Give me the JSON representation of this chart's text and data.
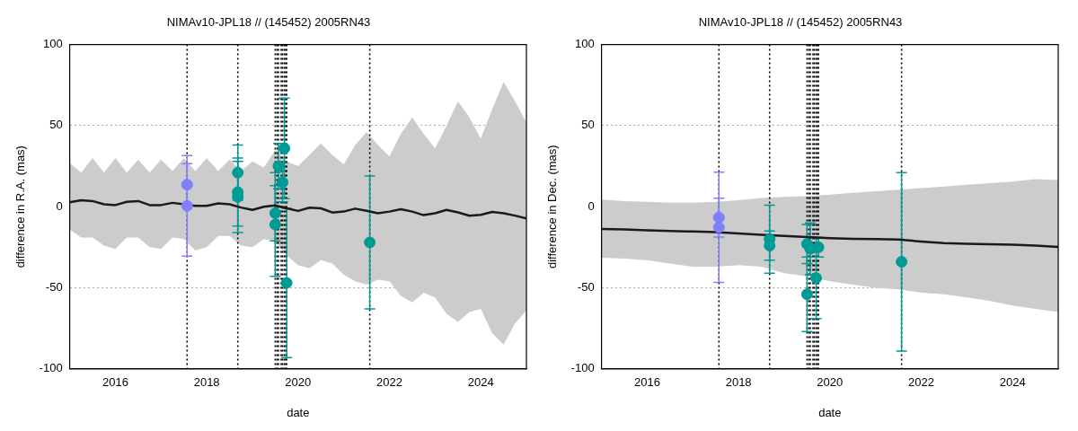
{
  "chart_data": [
    {
      "type": "scatter",
      "title": "NIMAv10-JPL18 // (145452) 2005RN43",
      "xlabel": "date",
      "ylabel": "difference in R.A. (mas)",
      "xlim": [
        2015,
        2025
      ],
      "xticks": [
        2016,
        2018,
        2020,
        2022,
        2024
      ],
      "ylim": [
        -100,
        100
      ],
      "yticks": [
        -100,
        -50,
        0,
        50,
        100
      ],
      "grid": "y",
      "legend": false,
      "marker": "circle",
      "ref_lines": [
        {
          "axis": "x",
          "value": 2017.57,
          "line_style": "dotted",
          "color": "#000000"
        },
        {
          "axis": "x",
          "value": 2018.68,
          "line_style": "dotted",
          "color": "#000000"
        },
        {
          "axis": "x",
          "value": 2019.5,
          "line_style": "dotted",
          "color": "#000000"
        },
        {
          "axis": "x",
          "value": 2019.54,
          "line_style": "dotted",
          "color": "#000000"
        },
        {
          "axis": "x",
          "value": 2019.57,
          "line_style": "dotted",
          "color": "#000000"
        },
        {
          "axis": "x",
          "value": 2019.63,
          "line_style": "dotted",
          "color": "#000000"
        },
        {
          "axis": "x",
          "value": 2019.66,
          "line_style": "dotted",
          "color": "#000000"
        },
        {
          "axis": "x",
          "value": 2019.7,
          "line_style": "dotted",
          "color": "#000000"
        },
        {
          "axis": "x",
          "value": 2019.73,
          "line_style": "dotted",
          "color": "#000000"
        },
        {
          "axis": "x",
          "value": 2019.75,
          "line_style": "dotted",
          "color": "#000000"
        },
        {
          "axis": "x",
          "value": 2021.57,
          "line_style": "dotted",
          "color": "#000000"
        }
      ],
      "series": [
        {
          "type": "line",
          "color": "#1a1a1a",
          "marker": "none",
          "x": [
            2015,
            2015.25,
            2015.5,
            2015.75,
            2016,
            2016.25,
            2016.5,
            2016.75,
            2017,
            2017.25,
            2017.5,
            2017.75,
            2018,
            2018.25,
            2018.5,
            2018.75,
            2019,
            2019.25,
            2019.5,
            2019.75,
            2020,
            2020.25,
            2020.5,
            2020.75,
            2021,
            2021.25,
            2021.5,
            2021.75,
            2022,
            2022.25,
            2022.5,
            2022.75,
            2023,
            2023.25,
            2023.5,
            2023.75,
            2024,
            2024.25,
            2024.5,
            2024.75,
            2025
          ],
          "values": [
            2.8,
            4,
            3.5,
            1.5,
            1,
            3,
            3.5,
            1,
            1,
            2.4,
            1.5,
            0.5,
            0.5,
            2,
            1.5,
            -0.5,
            -2,
            0,
            0.8,
            -1,
            -2.6,
            -0.6,
            -1,
            -3.6,
            -3,
            -1.2,
            -2.5,
            -4,
            -3,
            -1.6,
            -3,
            -5.2,
            -4,
            -2,
            -3.5,
            -5.6,
            -5,
            -3.2,
            -4,
            -5.5,
            -7.3
          ],
          "upper": [
            27,
            21,
            30,
            21,
            30,
            21,
            29,
            21,
            29,
            22,
            30,
            22,
            30,
            22,
            29,
            22,
            28,
            24,
            35,
            28,
            25,
            32,
            39,
            32,
            26,
            38,
            46,
            38,
            31,
            45,
            55,
            45,
            36,
            50,
            65,
            55,
            42,
            60,
            77,
            65,
            52
          ],
          "lower": [
            -14,
            -19,
            -19,
            -24,
            -26,
            -19,
            -19,
            -25,
            -26,
            -19,
            -20,
            -27,
            -25,
            -18,
            -18,
            -24,
            -25,
            -20,
            -21,
            -30,
            -36,
            -38,
            -33,
            -35,
            -42,
            -46,
            -48,
            -45,
            -46,
            -55,
            -59,
            -53,
            -56,
            -66,
            -71,
            -65,
            -63,
            -78,
            -85,
            -72,
            -64
          ]
        },
        {
          "color": "#7f7fff",
          "x": [
            2017.57,
            2017.57
          ],
          "values": [
            13.6,
            0.5
          ],
          "errors": [
            13,
            31
          ]
        },
        {
          "color": "#009b95",
          "x": [
            2018.68,
            2018.68,
            2018.68,
            2019.5,
            2019.5,
            2019.57,
            2019.66,
            2019.7,
            2019.75,
            2021.57
          ],
          "values": [
            21,
            9,
            6,
            -4,
            -11,
            25,
            15,
            36,
            -47,
            -22
          ],
          "errors": [
            17,
            21,
            22,
            17,
            32,
            14,
            12,
            31,
            46,
            41
          ]
        }
      ]
    },
    {
      "type": "scatter",
      "title": "NIMAv10-JPL18 // (145452) 2005RN43",
      "xlabel": "date",
      "ylabel": "difference in Dec. (mas)",
      "xlim": [
        2015,
        2025
      ],
      "xticks": [
        2016,
        2018,
        2020,
        2022,
        2024
      ],
      "ylim": [
        -100,
        100
      ],
      "yticks": [
        -100,
        -50,
        0,
        50,
        100
      ],
      "grid": "y",
      "legend": false,
      "marker": "circle",
      "ref_lines": [
        {
          "axis": "x",
          "value": 2017.57,
          "line_style": "dotted",
          "color": "#000000"
        },
        {
          "axis": "x",
          "value": 2018.68,
          "line_style": "dotted",
          "color": "#000000"
        },
        {
          "axis": "x",
          "value": 2019.5,
          "line_style": "dotted",
          "color": "#000000"
        },
        {
          "axis": "x",
          "value": 2019.54,
          "line_style": "dotted",
          "color": "#000000"
        },
        {
          "axis": "x",
          "value": 2019.57,
          "line_style": "dotted",
          "color": "#000000"
        },
        {
          "axis": "x",
          "value": 2019.63,
          "line_style": "dotted",
          "color": "#000000"
        },
        {
          "axis": "x",
          "value": 2019.66,
          "line_style": "dotted",
          "color": "#000000"
        },
        {
          "axis": "x",
          "value": 2019.7,
          "line_style": "dotted",
          "color": "#000000"
        },
        {
          "axis": "x",
          "value": 2019.73,
          "line_style": "dotted",
          "color": "#000000"
        },
        {
          "axis": "x",
          "value": 2019.75,
          "line_style": "dotted",
          "color": "#000000"
        },
        {
          "axis": "x",
          "value": 2021.57,
          "line_style": "dotted",
          "color": "#000000"
        }
      ],
      "series": [
        {
          "type": "line",
          "color": "#1a1a1a",
          "marker": "none",
          "x": [
            2015,
            2015.5,
            2016,
            2016.5,
            2017,
            2017.5,
            2018,
            2018.5,
            2019,
            2019.5,
            2020,
            2020.5,
            2021,
            2021.5,
            2022,
            2022.5,
            2023,
            2023.5,
            2024,
            2024.5,
            2025
          ],
          "values": [
            -13.7,
            -14,
            -14.5,
            -15,
            -15.3,
            -15.7,
            -16.5,
            -17.3,
            -18,
            -18.7,
            -19.4,
            -19.8,
            -20,
            -20.2,
            -21.5,
            -22.5,
            -22.8,
            -23.2,
            -23.4,
            -24,
            -24.8
          ],
          "upper": [
            4.4,
            3.5,
            3,
            2.5,
            2.4,
            3,
            4,
            5.4,
            6,
            6.5,
            7.5,
            8.5,
            9.5,
            10.5,
            11.5,
            12.5,
            13.5,
            14.5,
            15.5,
            17,
            16.5
          ],
          "lower": [
            -31.5,
            -32,
            -33,
            -35,
            -37,
            -37,
            -36,
            -37,
            -41,
            -43,
            -46,
            -48,
            -50,
            -51,
            -53,
            -54,
            -56,
            -58,
            -61,
            -63,
            -65
          ]
        },
        {
          "color": "#7f7fff",
          "x": [
            2017.57,
            2017.57
          ],
          "values": [
            -6.7,
            -12.7
          ],
          "errors": [
            12,
            34
          ]
        },
        {
          "color": "#009b95",
          "x": [
            2018.68,
            2018.68,
            2019.5,
            2019.5,
            2019.57,
            2019.7,
            2019.75,
            2021.57
          ],
          "values": [
            -20,
            -24,
            -23,
            -54,
            -26,
            -44,
            -25,
            -34
          ],
          "errors": [
            21,
            9,
            12,
            23,
            16,
            25,
            6,
            55
          ]
        }
      ]
    }
  ]
}
